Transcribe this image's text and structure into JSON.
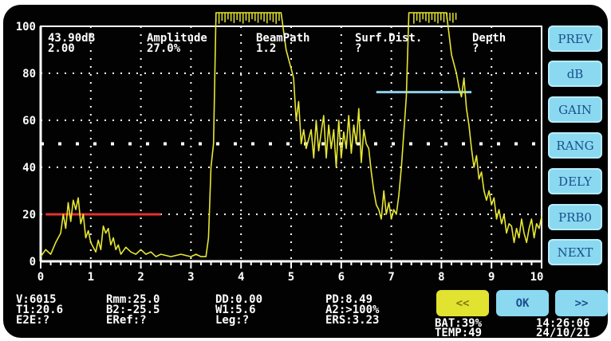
{
  "colors": {
    "trace": "#e6e634",
    "gate_a": "#e53030",
    "gate_b": "#8ed0e8",
    "button": "#8ad9f0",
    "button_text": "#1b4f8e",
    "back_button": "#e2e230",
    "grid": "#ffffff"
  },
  "header": {
    "gain_value": "43.90dB",
    "gain_step": "2.00",
    "amplitude_label": "Amplitude",
    "amplitude_value": "27.0%",
    "beampath_label": "BeamPath",
    "beampath_value": "1.2",
    "surf_label": "Surf.Dist.",
    "surf_value": "?",
    "depth_label": "Depth",
    "depth_value": "?"
  },
  "chart_data": {
    "type": "line",
    "title": "",
    "xlabel": "",
    "ylabel": "",
    "xlim": [
      0,
      10
    ],
    "ylim": [
      0,
      100
    ],
    "x_ticks": [
      "0",
      "1",
      "2",
      "3",
      "4",
      "5",
      "6",
      "7",
      "8",
      "9",
      "10"
    ],
    "y_ticks": [
      "0",
      "20",
      "40",
      "60",
      "80",
      "100"
    ],
    "grid": true,
    "gates": [
      {
        "name": "A",
        "x_start": 0.1,
        "x_end": 2.4,
        "level": 20
      },
      {
        "name": "B",
        "x_start": 6.7,
        "x_end": 8.6,
        "level": 72
      }
    ],
    "series": [
      {
        "x": [
          0,
          0.1,
          0.2,
          0.3,
          0.4,
          0.45,
          0.5,
          0.55,
          0.6,
          0.65,
          0.7,
          0.75,
          0.8,
          0.85,
          0.9,
          0.95,
          1.0,
          1.05,
          1.1,
          1.15,
          1.2,
          1.25,
          1.3,
          1.35,
          1.4,
          1.45,
          1.5,
          1.55,
          1.6,
          1.7,
          1.8,
          1.9,
          2.0,
          2.1,
          2.2,
          2.3,
          2.4,
          2.6,
          2.8,
          3.0,
          3.1,
          3.2,
          3.3,
          3.35,
          3.4,
          3.45,
          3.5,
          3.55,
          3.6,
          3.65,
          3.7,
          3.75,
          3.8,
          3.9,
          4.0,
          4.2,
          4.4,
          4.6,
          4.8,
          4.9,
          5.0,
          5.05,
          5.1,
          5.15,
          5.2,
          5.25,
          5.3,
          5.35,
          5.4,
          5.45,
          5.5,
          5.55,
          5.6,
          5.65,
          5.7,
          5.75,
          5.8,
          5.85,
          5.9,
          5.95,
          6.0,
          6.05,
          6.1,
          6.15,
          6.2,
          6.25,
          6.3,
          6.35,
          6.4,
          6.45,
          6.5,
          6.55,
          6.6,
          6.65,
          6.7,
          6.75,
          6.8,
          6.85,
          6.9,
          6.95,
          7.0,
          7.05,
          7.1,
          7.15,
          7.2,
          7.25,
          7.3,
          7.35,
          7.4,
          7.45,
          7.5,
          7.6,
          7.7,
          7.8,
          7.9,
          8.0,
          8.1,
          8.2,
          8.3,
          8.35,
          8.4,
          8.45,
          8.5,
          8.55,
          8.6,
          8.65,
          8.7,
          8.75,
          8.8,
          8.85,
          8.9,
          8.95,
          9.0,
          9.05,
          9.1,
          9.15,
          9.2,
          9.25,
          9.3,
          9.35,
          9.4,
          9.45,
          9.5,
          9.55,
          9.6,
          9.65,
          9.7,
          9.75,
          9.8,
          9.85,
          9.9,
          9.95,
          10.0
        ],
        "y": [
          2,
          5,
          3,
          8,
          12,
          20,
          14,
          25,
          17,
          26,
          22,
          27,
          16,
          20,
          10,
          13,
          8,
          6,
          4,
          9,
          5,
          15,
          12,
          14,
          7,
          10,
          5,
          7,
          3,
          6,
          4,
          3,
          5,
          3,
          4,
          2,
          3,
          2,
          3,
          2,
          3,
          2,
          2,
          10,
          40,
          50,
          100,
          100,
          100,
          100,
          100,
          100,
          100,
          100,
          100,
          100,
          100,
          100,
          100,
          90,
          82,
          78,
          60,
          68,
          50,
          56,
          48,
          52,
          56,
          44,
          60,
          47,
          55,
          62,
          44,
          58,
          48,
          56,
          40,
          60,
          44,
          55,
          48,
          62,
          46,
          58,
          50,
          65,
          42,
          56,
          50,
          48,
          38,
          30,
          24,
          22,
          18,
          30,
          20,
          25,
          18,
          22,
          20,
          28,
          40,
          55,
          70,
          100,
          100,
          100,
          100,
          100,
          100,
          100,
          100,
          100,
          100,
          88,
          80,
          74,
          70,
          78,
          65,
          58,
          48,
          40,
          45,
          35,
          38,
          30,
          26,
          30,
          24,
          27,
          18,
          22,
          16,
          20,
          12,
          16,
          15,
          8,
          14,
          10,
          18,
          12,
          8,
          14,
          18,
          10,
          16,
          14,
          19
        ]
      }
    ]
  },
  "softkeys": [
    {
      "label": "PREV"
    },
    {
      "label": "dB"
    },
    {
      "label": "GAIN"
    },
    {
      "label": "RANG"
    },
    {
      "label": "DELY"
    },
    {
      "label": "PRB0"
    },
    {
      "label": "NEXT"
    }
  ],
  "footer": {
    "v": "V:6015",
    "t1": "T1:20.6",
    "e2e": "E2E:?",
    "rmm": "Rmm:25.0",
    "b2": "B2:-25.5",
    "eref": "ERef:?",
    "dd": "DD:0.00",
    "w1": "W1:5.6",
    "leg": "Leg:?",
    "pd": "PD:8.49",
    "a2": "A2:>100%",
    "ers": "ERS:3.23",
    "back_label": "<<",
    "ok_label": "OK",
    "fwd_label": ">>",
    "battery": "BAT:39%",
    "temp": "TEMP:49",
    "time": "14:26:06",
    "date": "24/10/21"
  }
}
